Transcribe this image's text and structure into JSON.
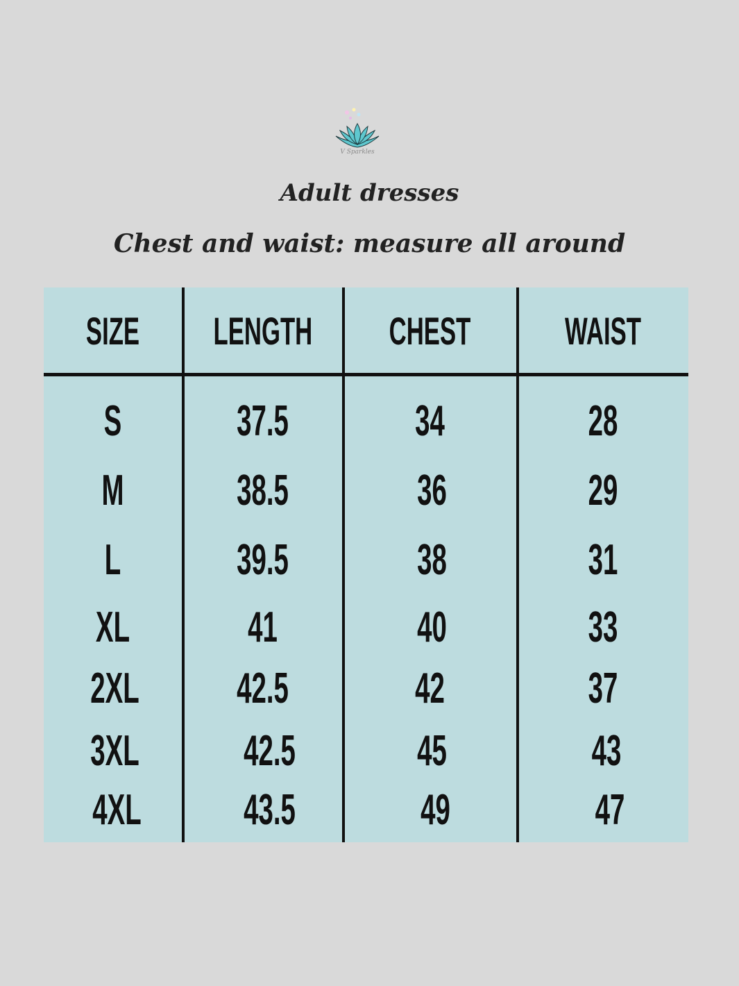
{
  "logo": {
    "text": "V Sparkles",
    "colors": {
      "petal": "#5fc8cf",
      "outline": "#1f3b3f"
    }
  },
  "title": "Adult dresses",
  "subtitle": "Chest and waist: measure all around",
  "colors": {
    "background": "#d9d9d9",
    "table": "#bddcdf",
    "lines": "#111111"
  },
  "table": {
    "headers": [
      "SIZE",
      "LENGTH",
      "CHEST",
      "WAIST"
    ],
    "rows": [
      [
        "S",
        "37.5",
        "34",
        "28"
      ],
      [
        "M",
        "38.5",
        "36",
        "29"
      ],
      [
        "L",
        "39.5",
        "38",
        "31"
      ],
      [
        "XL",
        "41",
        "40",
        "33"
      ],
      [
        "2XL",
        "42.5",
        "42",
        "37"
      ],
      [
        "3XL",
        "42.5",
        "45",
        "43"
      ],
      [
        "4XL",
        "43.5",
        "49",
        "47"
      ]
    ]
  }
}
